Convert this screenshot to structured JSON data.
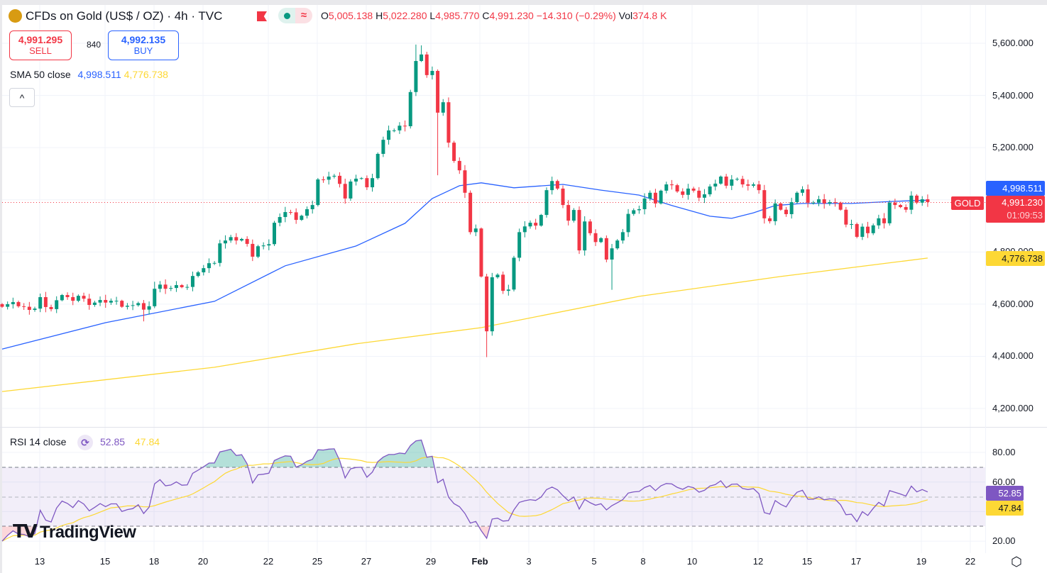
{
  "header": {
    "title": "CFDs on Gold (US$ / OZ) · 4h · TVC",
    "ohlc": {
      "o_label": "O",
      "o": "5,005.138",
      "h_label": "H",
      "h": "5,022.280",
      "l_label": "L",
      "l": "4,985.770",
      "c_label": "C",
      "c": "4,991.230",
      "change": "−14.310 (−0.29%)",
      "vol_label": "Vol",
      "vol": "374.8 K"
    },
    "pill_icon": "≈",
    "icons": {
      "symbol": "gold-bars-icon",
      "flag": "flag-icon",
      "status": "market-open-dot-icon",
      "delayed": "approx-icon",
      "collapse": "chevron-up-icon",
      "rsi": "refresh-icon",
      "settings": "hexagon-settings-icon"
    }
  },
  "trade": {
    "sell_price": "4,991.295",
    "sell_label": "SELL",
    "spread": "840",
    "buy_price": "4,992.135",
    "buy_label": "BUY"
  },
  "indicators": {
    "sma_label": "SMA 50 close",
    "sma_value": "4,998.511",
    "sma2_value": "4,776.738",
    "rsi_label": "RSI 14 close",
    "rsi_value": "52.85",
    "rsi_ma_value": "47.84",
    "collapse_glyph": "^"
  },
  "price_axis": {
    "ticks": [
      "5,600.000",
      "5,400.000",
      "5,200.000",
      "4,800.000",
      "4,600.000",
      "4,400.000",
      "4,200.000"
    ]
  },
  "rsi_axis": {
    "ticks": [
      "80.00",
      "60.00",
      "20.00"
    ]
  },
  "time_axis": {
    "labels": [
      "13",
      "15",
      "18",
      "20",
      "22",
      "25",
      "27",
      "29",
      "Feb",
      "3",
      "5",
      "8",
      "10",
      "12",
      "15",
      "17",
      "19",
      "22"
    ]
  },
  "tags": {
    "sma": "4,998.511",
    "symbol": "GOLD",
    "last": "4,991.230",
    "countdown": "01:09:53",
    "sma2": "4,776.738",
    "rsi": "52.85",
    "rsi_ma": "47.84"
  },
  "watermark": "TradingView",
  "colors": {
    "up": "#089981",
    "down": "#f23645",
    "sma": "#2962ff",
    "sma2": "#fdd835",
    "rsi": "#7e57c2",
    "rsi_ma": "#fdd835"
  },
  "chart_data": {
    "type": "candlestick",
    "interval": "4h",
    "ylim": [
      4200,
      5600
    ],
    "grid": true,
    "close": [
      4590,
      4600,
      4608,
      4592,
      4590,
      4578,
      4583,
      4627,
      4589,
      4581,
      4615,
      4635,
      4627,
      4613,
      4632,
      4621,
      4597,
      4606,
      4616,
      4606,
      4613,
      4613,
      4590,
      4594,
      4596,
      4604,
      4579,
      4592,
      4659,
      4675,
      4659,
      4662,
      4673,
      4665,
      4666,
      4708,
      4722,
      4738,
      4757,
      4758,
      4833,
      4844,
      4857,
      4844,
      4850,
      4831,
      4782,
      4822,
      4825,
      4830,
      4912,
      4934,
      4953,
      4952,
      4923,
      4939,
      4964,
      4980,
      5078,
      5077,
      5089,
      5092,
      5061,
      5005,
      5070,
      5081,
      5083,
      5048,
      5083,
      5176,
      5230,
      5266,
      5266,
      5284,
      5282,
      5413,
      5532,
      5557,
      5478,
      5494,
      5334,
      5374,
      5219,
      5149,
      5113,
      5027,
      4876,
      4890,
      4706,
      4496,
      4703,
      4713,
      4651,
      4656,
      4778,
      4876,
      4898,
      4912,
      4901,
      4942,
      5037,
      5072,
      5043,
      4980,
      4920,
      4961,
      4806,
      4917,
      4872,
      4838,
      4853,
      4771,
      4814,
      4844,
      4876,
      4946,
      4960,
      4964,
      5005,
      5027,
      4986,
      5035,
      5059,
      5056,
      5032,
      5019,
      5043,
      5035,
      5008,
      5021,
      5051,
      5062,
      5089,
      5054,
      5078,
      5080,
      5059,
      5054,
      5059,
      5037,
      4929,
      4918,
      4986,
      4962,
      4945,
      4991,
      5027,
      5040,
      4989,
      4989,
      5002,
      4986,
      4991,
      4989,
      4962,
      4905,
      4907,
      4858,
      4897,
      4872,
      4902,
      4929,
      4910,
      4989,
      4980,
      4972,
      4962,
      5016,
      4989,
      5002,
      4991.23
    ],
    "first_open": 4600,
    "notable_highs": {
      "28": 4686,
      "76": 5595,
      "77": 5592
    },
    "notable_lows": {
      "26": 4534,
      "80": 5094,
      "89": 4397,
      "112": 4655
    },
    "sma50": [
      [
        0,
        4428
      ],
      [
        19,
        4529
      ],
      [
        39,
        4611
      ],
      [
        52,
        4747
      ],
      [
        65,
        4823
      ],
      [
        74,
        4910
      ],
      [
        79,
        5005
      ],
      [
        84,
        5054
      ],
      [
        88,
        5065
      ],
      [
        94,
        5046
      ],
      [
        103,
        5059
      ],
      [
        110,
        5037
      ],
      [
        117,
        5018
      ],
      [
        123,
        4978
      ],
      [
        130,
        4937
      ],
      [
        134,
        4929
      ],
      [
        138,
        4950
      ],
      [
        142,
        4978
      ],
      [
        147,
        4986
      ],
      [
        156,
        4986
      ],
      [
        164,
        4994
      ],
      [
        170,
        4998.511
      ]
    ],
    "sma2": [
      [
        0,
        4265
      ],
      [
        39,
        4358
      ],
      [
        65,
        4448
      ],
      [
        88,
        4510
      ],
      [
        117,
        4630
      ],
      [
        143,
        4706
      ],
      [
        170,
        4776.738
      ]
    ],
    "rsi": {
      "period": 14,
      "ylim": [
        15,
        90
      ],
      "upper_band": 70,
      "middle": 50,
      "lower_band": 30,
      "last": 52.85,
      "ma_last": 47.84
    }
  }
}
